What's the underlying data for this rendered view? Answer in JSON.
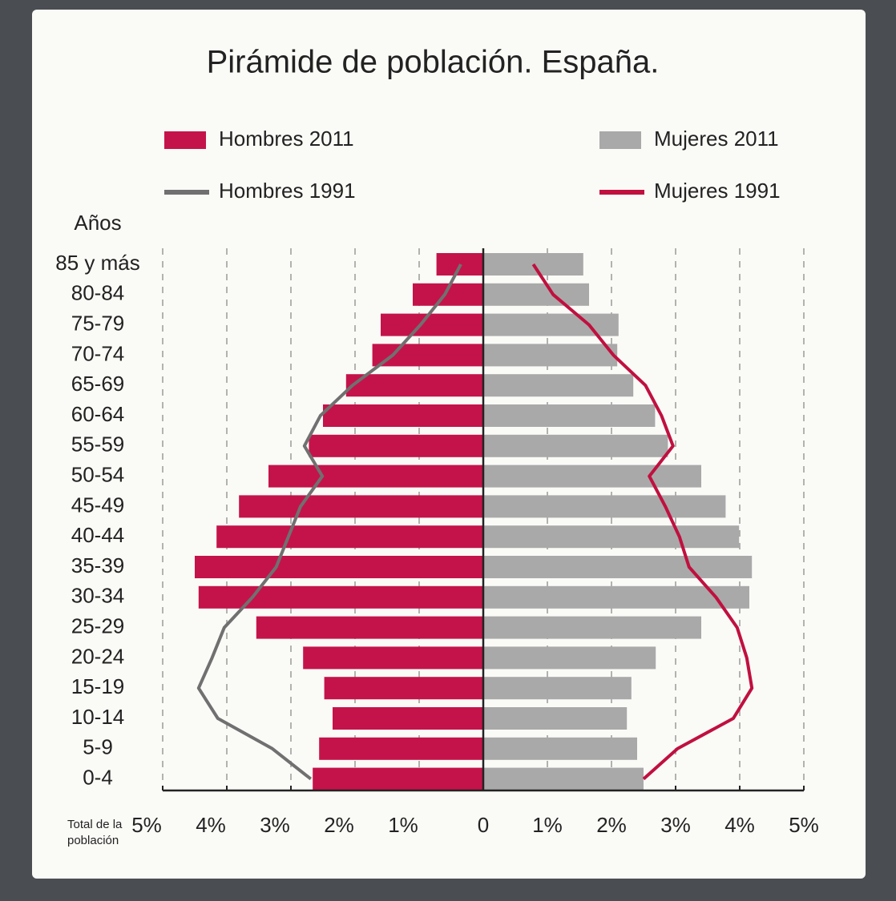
{
  "chart_data": {
    "type": "pyramid",
    "title": "Pirámide de población. España.",
    "y_label": "Años",
    "x_label": [
      "Total de la",
      "población"
    ],
    "categories": [
      "85 y más",
      "80-84",
      "75-79",
      "70-74",
      "65-69",
      "60-64",
      "55-59",
      "50-54",
      "45-49",
      "40-44",
      "35-39",
      "30-34",
      "25-29",
      "20-24",
      "15-19",
      "10-14",
      "5-9",
      "0-4"
    ],
    "series": [
      {
        "name": "Hombres 2011",
        "kind": "bar",
        "side": "left",
        "color": "#c4134a",
        "values": [
          0.73,
          1.1,
          1.6,
          1.73,
          2.14,
          2.5,
          2.72,
          3.35,
          3.81,
          4.16,
          4.5,
          4.44,
          3.54,
          2.81,
          2.48,
          2.35,
          2.56,
          2.66
        ]
      },
      {
        "name": "Mujeres 2011",
        "kind": "bar",
        "side": "right",
        "color": "#a9a9a9",
        "values": [
          1.56,
          1.65,
          2.11,
          2.09,
          2.34,
          2.68,
          2.88,
          3.4,
          3.78,
          3.99,
          4.19,
          4.15,
          3.4,
          2.69,
          2.31,
          2.24,
          2.4,
          2.5
        ]
      },
      {
        "name": "Hombres 1991",
        "kind": "line",
        "side": "left",
        "color": "#707070",
        "values": [
          0.35,
          0.6,
          0.98,
          1.41,
          2.04,
          2.54,
          2.79,
          2.51,
          2.85,
          3.04,
          3.23,
          3.6,
          4.04,
          4.23,
          4.44,
          4.14,
          3.29,
          2.69
        ]
      },
      {
        "name": "Mujeres 1991",
        "kind": "line",
        "side": "right",
        "color": "#c0103f",
        "values": [
          0.78,
          1.09,
          1.65,
          2.03,
          2.53,
          2.78,
          2.96,
          2.59,
          2.84,
          3.06,
          3.21,
          3.63,
          3.96,
          4.11,
          4.19,
          3.9,
          3.03,
          2.5
        ]
      }
    ],
    "xlim": [
      -5,
      5
    ],
    "xticks": [
      {
        "value": -5,
        "label": "5%"
      },
      {
        "value": -4,
        "label": "4%"
      },
      {
        "value": -3,
        "label": "3%"
      },
      {
        "value": -2,
        "label": "2%"
      },
      {
        "value": -1,
        "label": "1%"
      },
      0,
      {
        "value": 1,
        "label": "1%"
      },
      {
        "value": 2,
        "label": "2%"
      },
      {
        "value": 3,
        "label": "3%"
      },
      {
        "value": 4,
        "label": "4%"
      },
      {
        "value": 5,
        "label": "5%"
      }
    ],
    "grid": true
  }
}
